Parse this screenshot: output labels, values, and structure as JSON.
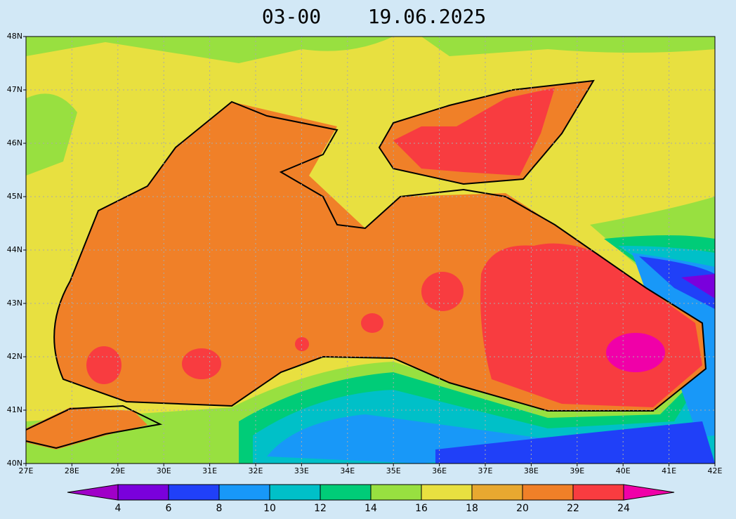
{
  "header": {
    "time": "03-00",
    "date": "19.06.2025"
  },
  "map": {
    "xlim": [
      27,
      42
    ],
    "ylim": [
      40,
      48
    ],
    "xticks": [
      {
        "value": 27,
        "label": "27E"
      },
      {
        "value": 28,
        "label": "28E"
      },
      {
        "value": 29,
        "label": "29E"
      },
      {
        "value": 30,
        "label": "30E"
      },
      {
        "value": 31,
        "label": "31E"
      },
      {
        "value": 32,
        "label": "32E"
      },
      {
        "value": 33,
        "label": "33E"
      },
      {
        "value": 34,
        "label": "34E"
      },
      {
        "value": 35,
        "label": "35E"
      },
      {
        "value": 36,
        "label": "36E"
      },
      {
        "value": 37,
        "label": "37E"
      },
      {
        "value": 38,
        "label": "38E"
      },
      {
        "value": 39,
        "label": "39E"
      },
      {
        "value": 40,
        "label": "40E"
      },
      {
        "value": 41,
        "label": "41E"
      },
      {
        "value": 42,
        "label": "42E"
      }
    ],
    "yticks": [
      {
        "value": 40,
        "label": "40N"
      },
      {
        "value": 41,
        "label": "41N"
      },
      {
        "value": 42,
        "label": "42N"
      },
      {
        "value": 43,
        "label": "43N"
      },
      {
        "value": 44,
        "label": "44N"
      },
      {
        "value": 45,
        "label": "45N"
      },
      {
        "value": 46,
        "label": "46N"
      },
      {
        "value": 47,
        "label": "47N"
      },
      {
        "value": 48,
        "label": "48N"
      }
    ],
    "grid": true
  },
  "colorbar": {
    "levels": [
      4,
      6,
      8,
      10,
      12,
      14,
      16,
      18,
      20,
      22,
      24
    ],
    "colors": [
      "#7a00dc",
      "#2040f8",
      "#1898f8",
      "#00c0c8",
      "#00cc78",
      "#98e040",
      "#e8e040",
      "#e8a830",
      "#f08028",
      "#f83c40"
    ],
    "under_color": "#a000c8",
    "over_color": "#f000a8"
  }
}
